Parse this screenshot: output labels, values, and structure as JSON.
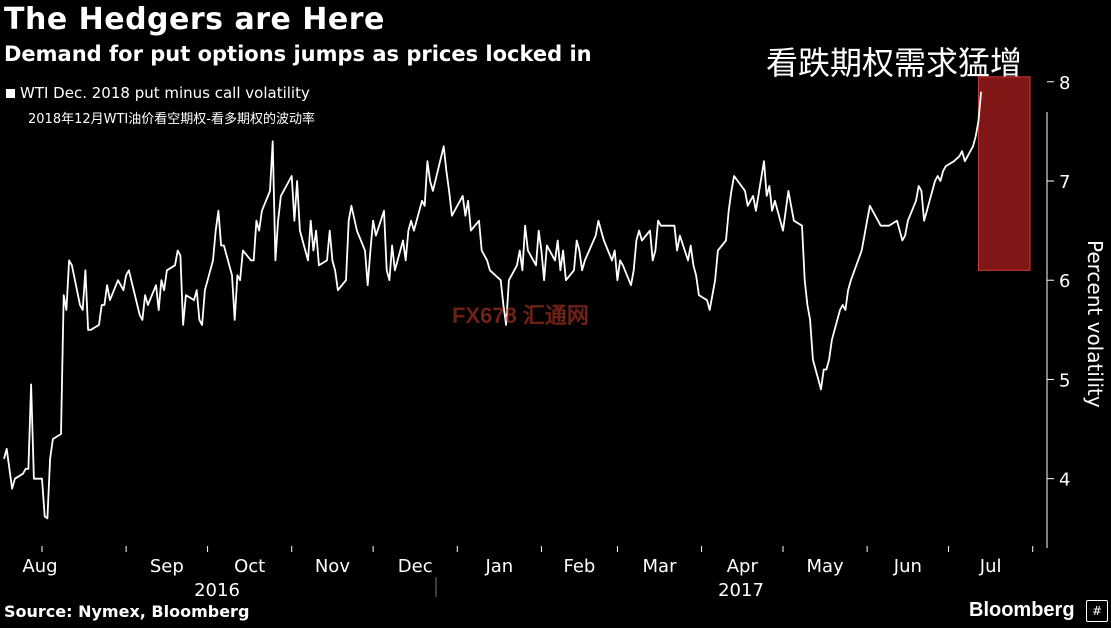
{
  "header": {
    "title": "The Hedgers are Here",
    "subtitle": "Demand for put options jumps as prices locked in",
    "cn_title": "看跌期权需求猛增"
  },
  "legend": {
    "label": "WTI Dec. 2018 put minus call volatility",
    "cn_label": "2018年12月WTI油价看空期权-看多期权的波动率"
  },
  "footer": {
    "source": "Source: Nymex, Bloomberg",
    "brand": "Bloomberg",
    "brand_mark": "#"
  },
  "watermark": "FX678 汇通网",
  "colors": {
    "background": "#000000",
    "line": "#ffffff",
    "highlight": "#b11f1f"
  },
  "chart_data": {
    "type": "line",
    "ylabel": "Percent volatility",
    "ylim": [
      3.1,
      8.3
    ],
    "yticks": [
      4,
      5,
      6,
      7,
      8
    ],
    "month_labels": [
      "Aug",
      "Sep",
      "Oct",
      "Nov",
      "Dec",
      "Jan",
      "Feb",
      "Mar",
      "Apr",
      "May",
      "Jun",
      "Jul"
    ],
    "year_labels": [
      "2016",
      "2017"
    ],
    "highlight": {
      "from_date": "2017-07-12",
      "to_date": "2017-07-31",
      "y_from": 6.1,
      "y_to": 8.05
    },
    "series": [
      {
        "points": [
          [
            "2016-07-18",
            4.2
          ],
          [
            "2016-07-19",
            4.3
          ],
          [
            "2016-07-20",
            4.1
          ],
          [
            "2016-07-21",
            3.9
          ],
          [
            "2016-07-22",
            4.0
          ],
          [
            "2016-07-25",
            4.05
          ],
          [
            "2016-07-26",
            4.1
          ],
          [
            "2016-07-27",
            4.1
          ],
          [
            "2016-07-28",
            4.95
          ],
          [
            "2016-07-29",
            4.0
          ],
          [
            "2016-08-01",
            4.0
          ],
          [
            "2016-08-02",
            3.62
          ],
          [
            "2016-08-03",
            3.6
          ],
          [
            "2016-08-04",
            4.2
          ],
          [
            "2016-08-05",
            4.4
          ],
          [
            "2016-08-08",
            4.45
          ],
          [
            "2016-08-09",
            5.85
          ],
          [
            "2016-08-10",
            5.7
          ],
          [
            "2016-08-11",
            6.2
          ],
          [
            "2016-08-12",
            6.15
          ],
          [
            "2016-08-15",
            5.75
          ],
          [
            "2016-08-16",
            5.7
          ],
          [
            "2016-08-17",
            6.1
          ],
          [
            "2016-08-18",
            5.5
          ],
          [
            "2016-08-19",
            5.5
          ],
          [
            "2016-08-22",
            5.55
          ],
          [
            "2016-08-23",
            5.75
          ],
          [
            "2016-08-24",
            5.75
          ],
          [
            "2016-08-25",
            5.95
          ],
          [
            "2016-08-26",
            5.8
          ],
          [
            "2016-08-29",
            6.0
          ],
          [
            "2016-08-30",
            5.95
          ],
          [
            "2016-08-31",
            5.9
          ],
          [
            "2016-09-01",
            6.05
          ],
          [
            "2016-09-02",
            6.1
          ],
          [
            "2016-09-06",
            5.65
          ],
          [
            "2016-09-07",
            5.6
          ],
          [
            "2016-09-08",
            5.85
          ],
          [
            "2016-09-09",
            5.75
          ],
          [
            "2016-09-12",
            5.95
          ],
          [
            "2016-09-13",
            5.7
          ],
          [
            "2016-09-14",
            6.0
          ],
          [
            "2016-09-15",
            5.9
          ],
          [
            "2016-09-16",
            6.1
          ],
          [
            "2016-09-19",
            6.15
          ],
          [
            "2016-09-20",
            6.3
          ],
          [
            "2016-09-21",
            6.25
          ],
          [
            "2016-09-22",
            5.55
          ],
          [
            "2016-09-23",
            5.85
          ],
          [
            "2016-09-26",
            5.8
          ],
          [
            "2016-09-27",
            5.9
          ],
          [
            "2016-09-28",
            5.6
          ],
          [
            "2016-09-29",
            5.55
          ],
          [
            "2016-09-30",
            5.9
          ],
          [
            "2016-10-03",
            6.2
          ],
          [
            "2016-10-04",
            6.5
          ],
          [
            "2016-10-05",
            6.7
          ],
          [
            "2016-10-06",
            6.35
          ],
          [
            "2016-10-07",
            6.35
          ],
          [
            "2016-10-10",
            6.05
          ],
          [
            "2016-10-11",
            5.6
          ],
          [
            "2016-10-12",
            6.05
          ],
          [
            "2016-10-13",
            6.0
          ],
          [
            "2016-10-14",
            6.3
          ],
          [
            "2016-10-17",
            6.2
          ],
          [
            "2016-10-18",
            6.2
          ],
          [
            "2016-10-19",
            6.6
          ],
          [
            "2016-10-20",
            6.5
          ],
          [
            "2016-10-21",
            6.7
          ],
          [
            "2016-10-24",
            6.9
          ],
          [
            "2016-10-25",
            7.4
          ],
          [
            "2016-10-26",
            6.2
          ],
          [
            "2016-10-27",
            6.6
          ],
          [
            "2016-10-28",
            6.85
          ],
          [
            "2016-10-31",
            7.0
          ],
          [
            "2016-11-01",
            7.05
          ],
          [
            "2016-11-02",
            6.6
          ],
          [
            "2016-11-03",
            7.0
          ],
          [
            "2016-11-04",
            6.5
          ],
          [
            "2016-11-07",
            6.2
          ],
          [
            "2016-11-08",
            6.6
          ],
          [
            "2016-11-09",
            6.3
          ],
          [
            "2016-11-10",
            6.5
          ],
          [
            "2016-11-11",
            6.15
          ],
          [
            "2016-11-14",
            6.2
          ],
          [
            "2016-11-15",
            6.5
          ],
          [
            "2016-11-16",
            6.2
          ],
          [
            "2016-11-17",
            6.1
          ],
          [
            "2016-11-18",
            5.9
          ],
          [
            "2016-11-21",
            6.0
          ],
          [
            "2016-11-22",
            6.6
          ],
          [
            "2016-11-23",
            6.75
          ],
          [
            "2016-11-25",
            6.5
          ],
          [
            "2016-11-28",
            6.3
          ],
          [
            "2016-11-29",
            5.95
          ],
          [
            "2016-11-30",
            6.3
          ],
          [
            "2016-12-01",
            6.6
          ],
          [
            "2016-12-02",
            6.45
          ],
          [
            "2016-12-05",
            6.7
          ],
          [
            "2016-12-06",
            6.1
          ],
          [
            "2016-12-07",
            6.0
          ],
          [
            "2016-12-08",
            6.35
          ],
          [
            "2016-12-09",
            6.1
          ],
          [
            "2016-12-12",
            6.4
          ],
          [
            "2016-12-13",
            6.2
          ],
          [
            "2016-12-14",
            6.5
          ],
          [
            "2016-12-15",
            6.6
          ],
          [
            "2016-12-16",
            6.5
          ],
          [
            "2016-12-19",
            6.8
          ],
          [
            "2016-12-20",
            6.75
          ],
          [
            "2016-12-21",
            7.2
          ],
          [
            "2016-12-22",
            7.0
          ],
          [
            "2016-12-23",
            6.9
          ],
          [
            "2016-12-27",
            7.35
          ],
          [
            "2016-12-28",
            7.1
          ],
          [
            "2016-12-29",
            6.9
          ],
          [
            "2016-12-30",
            6.65
          ],
          [
            "2017-01-03",
            6.85
          ],
          [
            "2017-01-04",
            6.65
          ],
          [
            "2017-01-05",
            6.8
          ],
          [
            "2017-01-06",
            6.5
          ],
          [
            "2017-01-09",
            6.6
          ],
          [
            "2017-01-10",
            6.3
          ],
          [
            "2017-01-11",
            6.25
          ],
          [
            "2017-01-12",
            6.2
          ],
          [
            "2017-01-13",
            6.1
          ],
          [
            "2017-01-17",
            6.0
          ],
          [
            "2017-01-18",
            5.75
          ],
          [
            "2017-01-19",
            5.55
          ],
          [
            "2017-01-20",
            6.0
          ],
          [
            "2017-01-23",
            6.15
          ],
          [
            "2017-01-24",
            6.3
          ],
          [
            "2017-01-25",
            6.1
          ],
          [
            "2017-01-26",
            6.55
          ],
          [
            "2017-01-27",
            6.3
          ],
          [
            "2017-01-30",
            6.15
          ],
          [
            "2017-01-31",
            6.5
          ],
          [
            "2017-02-01",
            6.3
          ],
          [
            "2017-02-02",
            6.0
          ],
          [
            "2017-02-03",
            6.35
          ],
          [
            "2017-02-06",
            6.2
          ],
          [
            "2017-02-07",
            6.4
          ],
          [
            "2017-02-08",
            6.1
          ],
          [
            "2017-02-09",
            6.3
          ],
          [
            "2017-02-10",
            6.0
          ],
          [
            "2017-02-13",
            6.1
          ],
          [
            "2017-02-14",
            6.4
          ],
          [
            "2017-02-15",
            6.3
          ],
          [
            "2017-02-16",
            6.1
          ],
          [
            "2017-02-17",
            6.2
          ],
          [
            "2017-02-21",
            6.45
          ],
          [
            "2017-02-22",
            6.6
          ],
          [
            "2017-02-23",
            6.5
          ],
          [
            "2017-02-24",
            6.4
          ],
          [
            "2017-02-27",
            6.2
          ],
          [
            "2017-02-28",
            6.3
          ],
          [
            "2017-03-01",
            6.0
          ],
          [
            "2017-03-02",
            6.2
          ],
          [
            "2017-03-03",
            6.15
          ],
          [
            "2017-03-06",
            5.95
          ],
          [
            "2017-03-07",
            6.1
          ],
          [
            "2017-03-08",
            6.4
          ],
          [
            "2017-03-09",
            6.5
          ],
          [
            "2017-03-10",
            6.4
          ],
          [
            "2017-03-13",
            6.5
          ],
          [
            "2017-03-14",
            6.2
          ],
          [
            "2017-03-15",
            6.3
          ],
          [
            "2017-03-16",
            6.6
          ],
          [
            "2017-03-17",
            6.55
          ],
          [
            "2017-03-20",
            6.55
          ],
          [
            "2017-03-21",
            6.55
          ],
          [
            "2017-03-22",
            6.55
          ],
          [
            "2017-03-23",
            6.3
          ],
          [
            "2017-03-24",
            6.45
          ],
          [
            "2017-03-27",
            6.2
          ],
          [
            "2017-03-28",
            6.35
          ],
          [
            "2017-03-29",
            6.15
          ],
          [
            "2017-03-30",
            6.05
          ],
          [
            "2017-03-31",
            5.85
          ],
          [
            "2017-04-03",
            5.8
          ],
          [
            "2017-04-04",
            5.7
          ],
          [
            "2017-04-05",
            5.85
          ],
          [
            "2017-04-06",
            6.0
          ],
          [
            "2017-04-07",
            6.3
          ],
          [
            "2017-04-10",
            6.4
          ],
          [
            "2017-04-11",
            6.7
          ],
          [
            "2017-04-12",
            6.9
          ],
          [
            "2017-04-13",
            7.05
          ],
          [
            "2017-04-17",
            6.9
          ],
          [
            "2017-04-18",
            6.75
          ],
          [
            "2017-04-19",
            6.8
          ],
          [
            "2017-04-20",
            6.85
          ],
          [
            "2017-04-21",
            6.7
          ],
          [
            "2017-04-24",
            7.2
          ],
          [
            "2017-04-25",
            6.85
          ],
          [
            "2017-04-26",
            6.95
          ],
          [
            "2017-04-27",
            6.7
          ],
          [
            "2017-04-28",
            6.8
          ],
          [
            "2017-05-01",
            6.5
          ],
          [
            "2017-05-02",
            6.7
          ],
          [
            "2017-05-03",
            6.9
          ],
          [
            "2017-05-04",
            6.75
          ],
          [
            "2017-05-05",
            6.6
          ],
          [
            "2017-05-08",
            6.55
          ],
          [
            "2017-05-09",
            6.0
          ],
          [
            "2017-05-10",
            5.75
          ],
          [
            "2017-05-11",
            5.6
          ],
          [
            "2017-05-12",
            5.2
          ],
          [
            "2017-05-15",
            4.9
          ],
          [
            "2017-05-16",
            5.1
          ],
          [
            "2017-05-17",
            5.1
          ],
          [
            "2017-05-18",
            5.2
          ],
          [
            "2017-05-19",
            5.4
          ],
          [
            "2017-05-22",
            5.7
          ],
          [
            "2017-05-23",
            5.75
          ],
          [
            "2017-05-24",
            5.7
          ],
          [
            "2017-05-25",
            5.9
          ],
          [
            "2017-05-26",
            6.0
          ],
          [
            "2017-05-30",
            6.3
          ],
          [
            "2017-05-31",
            6.45
          ],
          [
            "2017-06-01",
            6.6
          ],
          [
            "2017-06-02",
            6.75
          ],
          [
            "2017-06-05",
            6.6
          ],
          [
            "2017-06-06",
            6.55
          ],
          [
            "2017-06-07",
            6.55
          ],
          [
            "2017-06-08",
            6.55
          ],
          [
            "2017-06-09",
            6.55
          ],
          [
            "2017-06-12",
            6.6
          ],
          [
            "2017-06-13",
            6.5
          ],
          [
            "2017-06-14",
            6.4
          ],
          [
            "2017-06-15",
            6.45
          ],
          [
            "2017-06-16",
            6.6
          ],
          [
            "2017-06-19",
            6.8
          ],
          [
            "2017-06-20",
            6.95
          ],
          [
            "2017-06-21",
            6.9
          ],
          [
            "2017-06-22",
            6.6
          ],
          [
            "2017-06-23",
            6.7
          ],
          [
            "2017-06-26",
            7.0
          ],
          [
            "2017-06-27",
            7.05
          ],
          [
            "2017-06-28",
            7.0
          ],
          [
            "2017-06-29",
            7.1
          ],
          [
            "2017-06-30",
            7.15
          ],
          [
            "2017-07-03",
            7.2
          ],
          [
            "2017-07-05",
            7.25
          ],
          [
            "2017-07-06",
            7.3
          ],
          [
            "2017-07-07",
            7.2
          ],
          [
            "2017-07-10",
            7.35
          ],
          [
            "2017-07-11",
            7.45
          ],
          [
            "2017-07-12",
            7.6
          ],
          [
            "2017-07-13",
            7.9
          ]
        ]
      }
    ]
  }
}
